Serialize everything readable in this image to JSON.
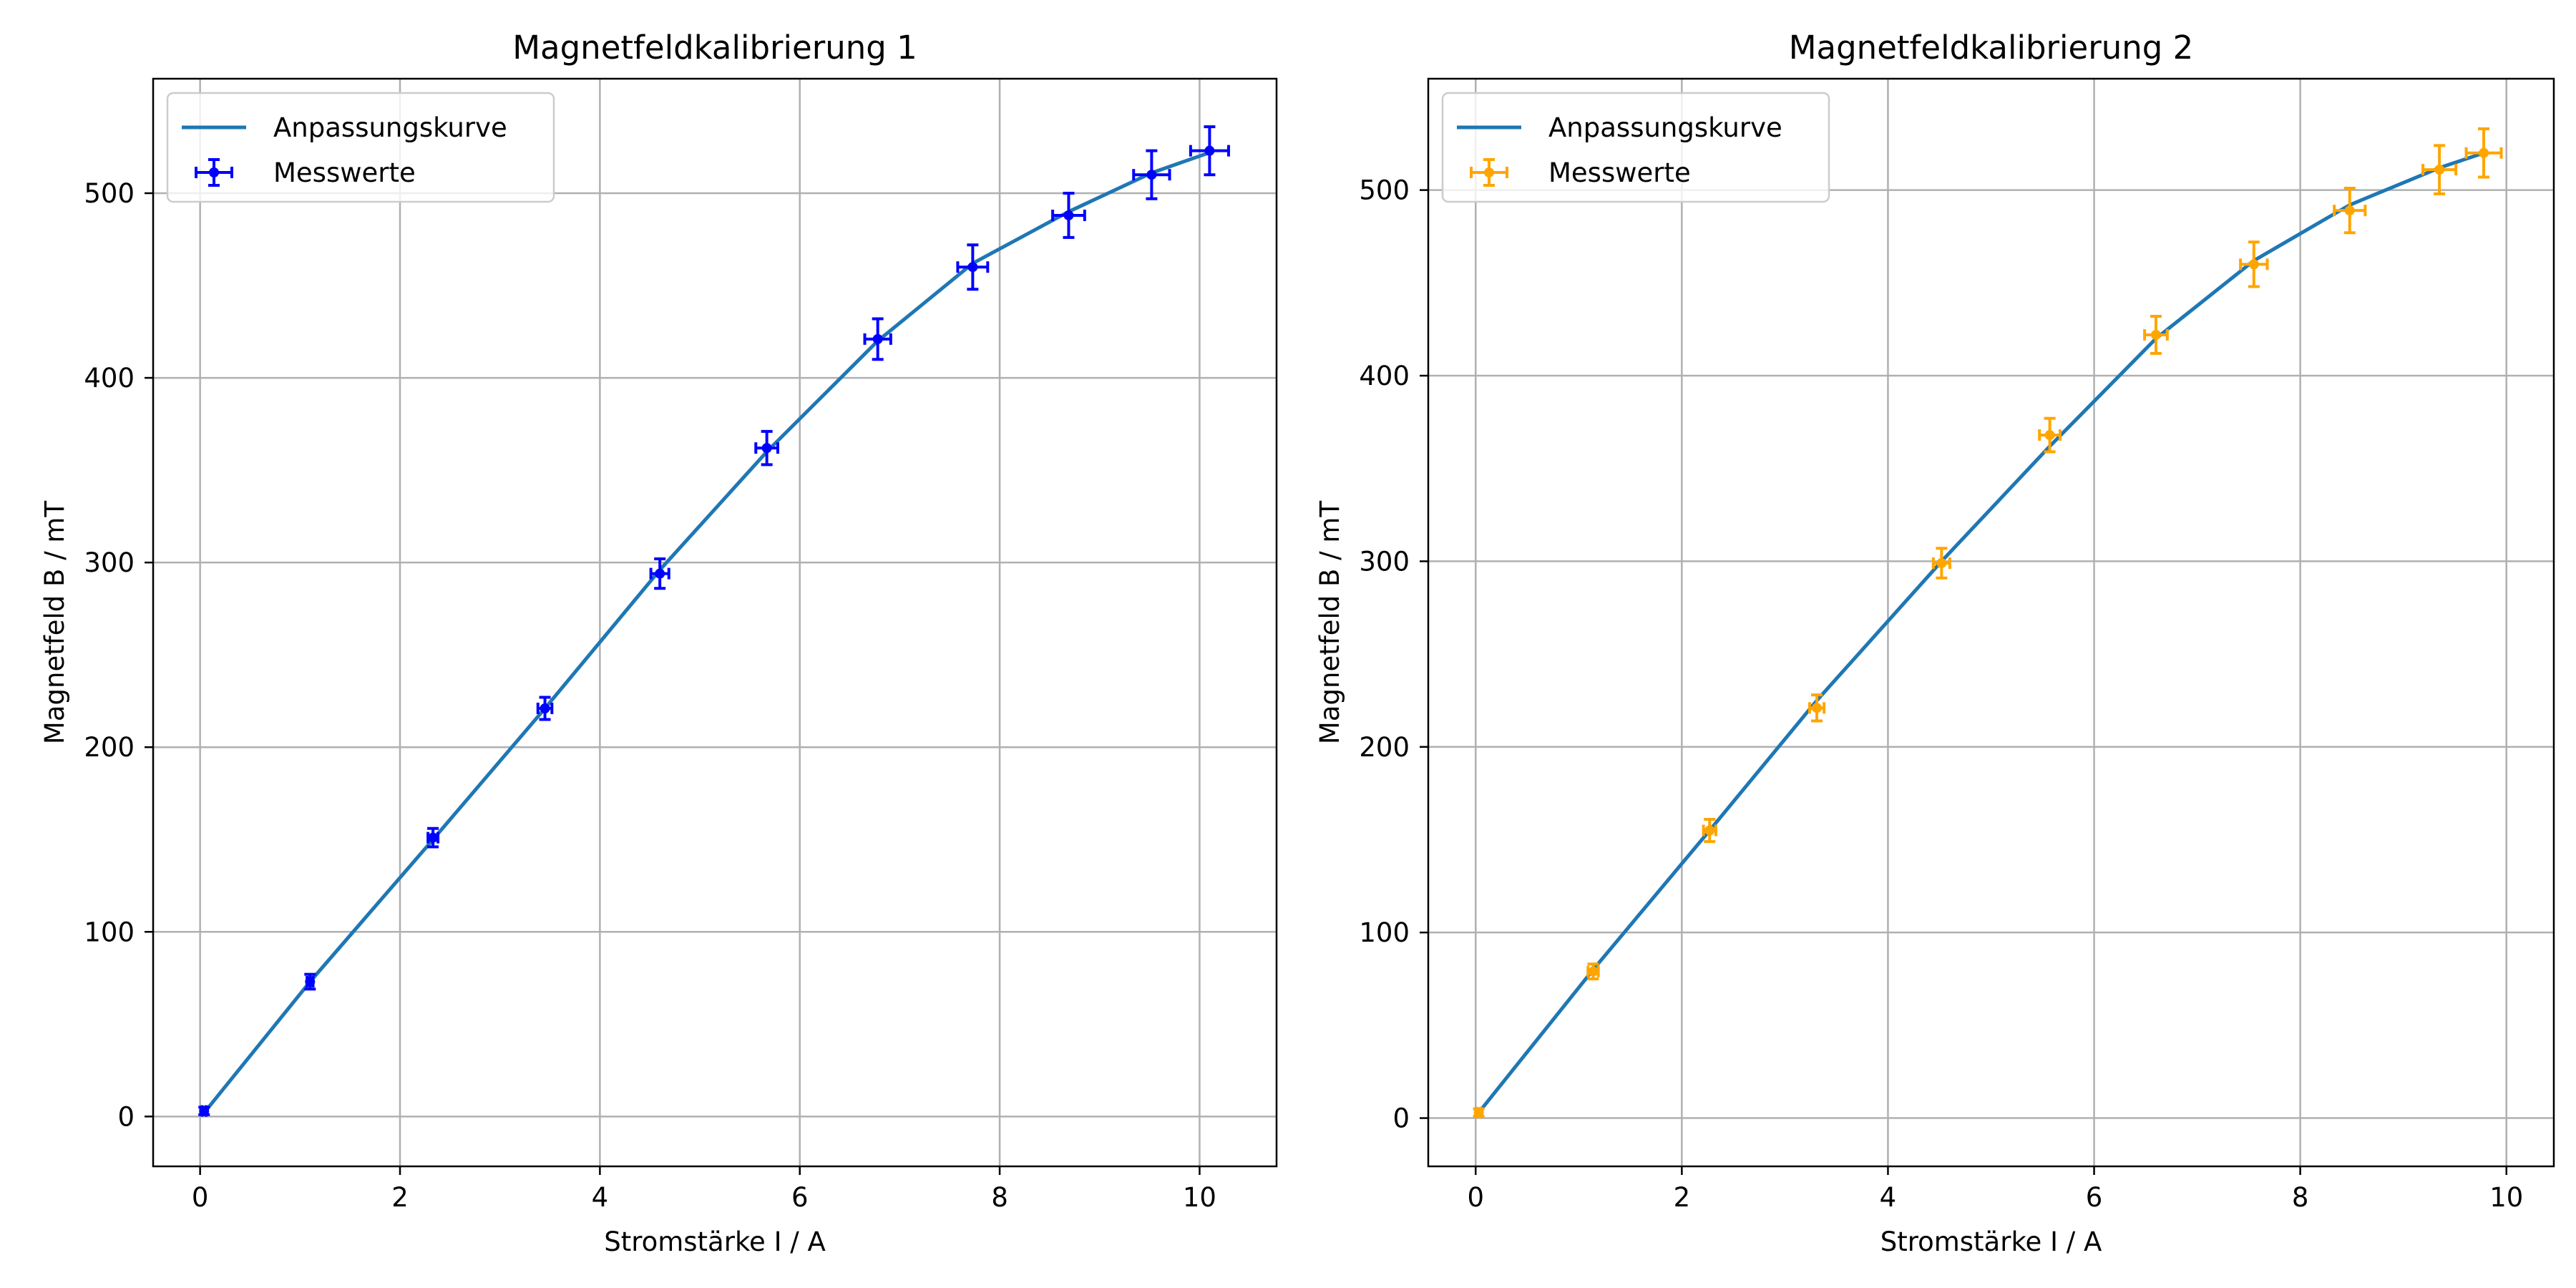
{
  "chart_data": [
    {
      "type": "scatter",
      "title": "Magnetfeldkalibrierung 1",
      "xlabel": "Stromstärke I / A",
      "ylabel": "Magnetfeld B / mT",
      "xlim": [
        -0.47,
        10.77
      ],
      "ylim": [
        -27,
        562
      ],
      "xticks": [
        0,
        2,
        4,
        6,
        8,
        10
      ],
      "yticks": [
        0,
        100,
        200,
        300,
        400,
        500
      ],
      "grid": true,
      "legend_position": "top-left",
      "legend": [
        "Anpassungskurve",
        "Messwerte"
      ],
      "series": [
        {
          "name": "Anpassungskurve",
          "kind": "line",
          "color": "#1f77b4",
          "x": [
            0.04,
            1.1,
            2.33,
            3.45,
            4.6,
            5.67,
            6.78,
            7.73,
            8.69,
            9.52,
            10.1
          ],
          "y": [
            2,
            73,
            150,
            221,
            296,
            360,
            420,
            462,
            490,
            511,
            522
          ]
        },
        {
          "name": "Messwerte",
          "kind": "errorbar",
          "color": "#0000ff",
          "x": [
            0.04,
            1.1,
            2.33,
            3.45,
            4.6,
            5.67,
            6.78,
            7.73,
            8.69,
            9.52,
            10.1
          ],
          "y": [
            3,
            73,
            151,
            221,
            294,
            362,
            421,
            460,
            488,
            510,
            523
          ],
          "xerr": [
            0.02,
            0.03,
            0.05,
            0.07,
            0.09,
            0.11,
            0.13,
            0.15,
            0.16,
            0.18,
            0.19
          ],
          "yerr": [
            2,
            4,
            5,
            6,
            8,
            9,
            11,
            12,
            12,
            13,
            13
          ]
        }
      ]
    },
    {
      "type": "scatter",
      "title": "Magnetfeldkalibrierung 2",
      "xlabel": "Stromstärke I / A",
      "ylabel": "Magnetfeld B / mT",
      "xlim": [
        -0.46,
        10.46
      ],
      "ylim": [
        -26,
        560
      ],
      "xticks": [
        0,
        2,
        4,
        6,
        8,
        10
      ],
      "yticks": [
        0,
        100,
        200,
        300,
        400,
        500
      ],
      "grid": true,
      "legend_position": "top-left",
      "legend": [
        "Anpassungskurve",
        "Messwerte"
      ],
      "series": [
        {
          "name": "Anpassungskurve",
          "kind": "line",
          "color": "#1f77b4",
          "x": [
            0.03,
            1.14,
            2.27,
            3.31,
            4.52,
            5.57,
            6.6,
            7.55,
            8.48,
            9.35,
            9.78
          ],
          "y": [
            3,
            80,
            155,
            225,
            300,
            362,
            420,
            462,
            492,
            512,
            520
          ]
        },
        {
          "name": "Messwerte",
          "kind": "errorbar",
          "color": "#ffa500",
          "x": [
            0.03,
            1.14,
            2.27,
            3.31,
            4.52,
            5.57,
            6.6,
            7.55,
            8.48,
            9.35,
            9.78
          ],
          "y": [
            3,
            79,
            155,
            221,
            299,
            368,
            422,
            460,
            489,
            511,
            520
          ],
          "xerr": [
            0.02,
            0.05,
            0.06,
            0.07,
            0.08,
            0.1,
            0.11,
            0.13,
            0.15,
            0.16,
            0.17
          ],
          "yerr": [
            2,
            4,
            6,
            7,
            8,
            9,
            10,
            12,
            12,
            13,
            13
          ]
        }
      ]
    }
  ]
}
